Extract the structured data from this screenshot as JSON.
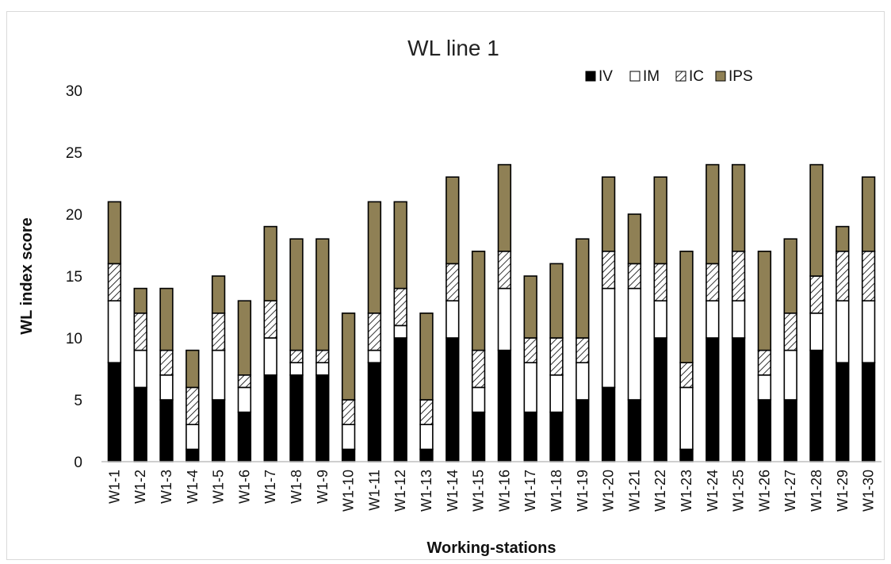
{
  "chart_data": {
    "type": "bar",
    "stacked": true,
    "title": "WL line 1",
    "xlabel": "Working-stations",
    "ylabel": "WL index score",
    "ylim": [
      0,
      30
    ],
    "yticks": [
      0,
      5,
      10,
      15,
      20,
      25,
      30
    ],
    "grid": false,
    "legend_position": "top-right",
    "categories": [
      "W1-1",
      "W1-2",
      "W1-3",
      "W1-4",
      "W1-5",
      "W1-6",
      "W1-7",
      "W1-8",
      "W1-9",
      "W1-10",
      "W1-11",
      "W1-12",
      "W1-13",
      "W1-14",
      "W1-15",
      "W1-16",
      "W1-17",
      "W1-18",
      "W1-19",
      "W1-20",
      "W1-21",
      "W1-22",
      "W1-23",
      "W1-24",
      "W1-25",
      "W1-26",
      "W1-27",
      "W1-28",
      "W1-29",
      "W1-30"
    ],
    "series": [
      {
        "name": "IV",
        "color": "#000000",
        "fill": "solid",
        "values": [
          8,
          6,
          5,
          1,
          5,
          4,
          7,
          7,
          7,
          1,
          8,
          10,
          1,
          10,
          4,
          9,
          4,
          4,
          5,
          6,
          5,
          10,
          1,
          10,
          10,
          5,
          5,
          9,
          8,
          8
        ]
      },
      {
        "name": "IM",
        "color": "#ffffff",
        "fill": "solid",
        "values": [
          5,
          3,
          2,
          2,
          4,
          2,
          3,
          1,
          1,
          2,
          1,
          1,
          2,
          3,
          2,
          5,
          4,
          3,
          3,
          8,
          9,
          3,
          5,
          3,
          3,
          2,
          4,
          3,
          5,
          5
        ]
      },
      {
        "name": "IC",
        "color": "#ffffff",
        "fill": "hatch",
        "values": [
          3,
          3,
          2,
          3,
          3,
          1,
          3,
          1,
          1,
          2,
          3,
          3,
          2,
          3,
          3,
          3,
          2,
          3,
          2,
          3,
          2,
          3,
          2,
          3,
          4,
          2,
          3,
          3,
          4,
          4
        ]
      },
      {
        "name": "IPS",
        "color": "#8f8055",
        "fill": "solid",
        "values": [
          5,
          2,
          5,
          3,
          3,
          6,
          6,
          9,
          9,
          7,
          9,
          7,
          7,
          7,
          8,
          7,
          5,
          6,
          8,
          6,
          4,
          7,
          9,
          8,
          7,
          8,
          6,
          9,
          2,
          6
        ]
      }
    ]
  }
}
